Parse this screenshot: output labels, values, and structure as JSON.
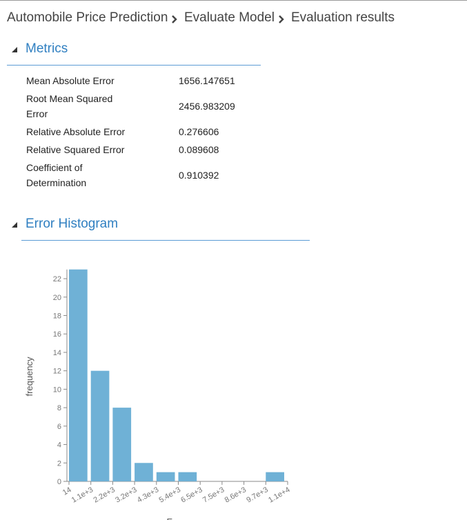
{
  "breadcrumb": [
    "Automobile Price Prediction",
    "Evaluate Model",
    "Evaluation results"
  ],
  "metrics": {
    "title": "Metrics",
    "rows": [
      [
        "Mean Absolute Error",
        "1656.147651"
      ],
      [
        "Root Mean Squared Error",
        "2456.983209"
      ],
      [
        "Relative Absolute Error",
        "0.276606"
      ],
      [
        "Relative Squared Error",
        "0.089608"
      ],
      [
        "Coefficient of Determination",
        "0.910392"
      ]
    ]
  },
  "histogram_section": {
    "title": "Error Histogram"
  },
  "chart_data": {
    "type": "histogram",
    "bins": [
      14,
      1088,
      2162,
      3236,
      4310,
      5384,
      6458,
      7532,
      8606,
      9680,
      10754
    ],
    "values": [
      23,
      12,
      8,
      2,
      1,
      1,
      0,
      0,
      0,
      1
    ],
    "color": "#6fb1d6",
    "xlabel": "Error",
    "ylabel": "frequency",
    "xlim": [
      14,
      10754
    ],
    "xticks": [
      14,
      {
        "value": 1088,
        "label": "1.1e+3"
      },
      {
        "value": 2162,
        "label": "2.2e+3"
      },
      {
        "value": 3236,
        "label": "3.2e+3"
      },
      {
        "value": 4310,
        "label": "4.3e+3"
      },
      {
        "value": 5384,
        "label": "5.4e+3"
      },
      {
        "value": 6458,
        "label": "6.5e+3"
      },
      {
        "value": 7532,
        "label": "7.5e+3"
      },
      {
        "value": 8606,
        "label": "8.6e+3"
      },
      {
        "value": 9680,
        "label": "9.7e+3"
      },
      {
        "value": 10754,
        "label": "1.1e+4"
      }
    ],
    "ylim": [
      0,
      23
    ],
    "yticks": [
      0,
      2,
      4,
      6,
      8,
      10,
      12,
      14,
      16,
      18,
      20,
      22
    ]
  }
}
